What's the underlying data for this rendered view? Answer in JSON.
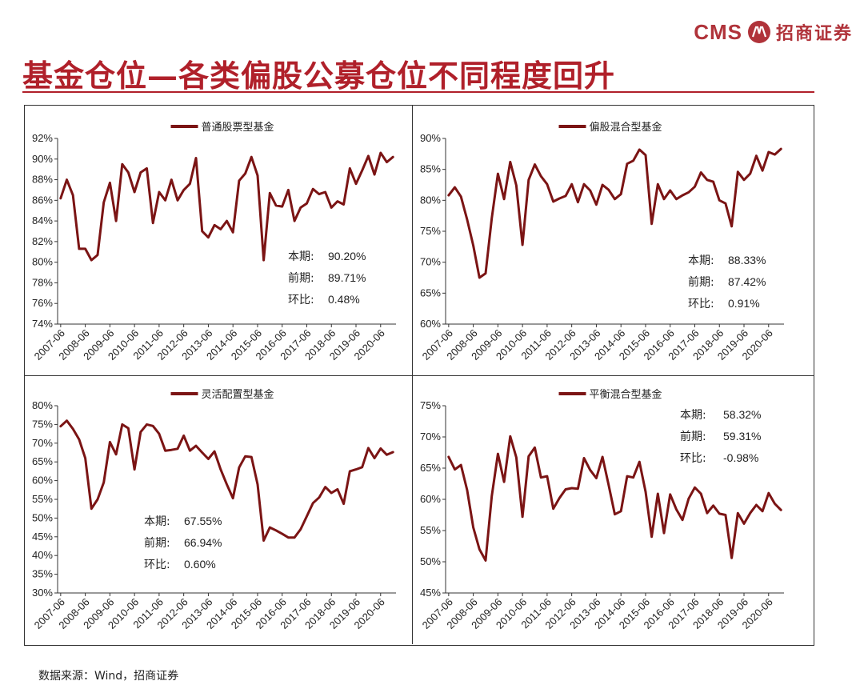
{
  "header": {
    "logo_cms": "CMS",
    "logo_cn": "招商证券",
    "title": "基金仓位—各类偏股公募仓位不同程度回升"
  },
  "source": "数据来源：Wind，招商证券",
  "colors": {
    "line": "#7b1414",
    "title": "#b0202a",
    "logo": "#b0333a"
  },
  "x_ticks": [
    "2007-06",
    "2008-06",
    "2009-06",
    "2010-06",
    "2011-06",
    "2012-06",
    "2013-06",
    "2014-06",
    "2015-06",
    "2016-06",
    "2017-06",
    "2018-06",
    "2019-06",
    "2020-06"
  ],
  "chart_data": [
    {
      "type": "line",
      "title": "普通股票型基金",
      "legend": "普通股票型基金",
      "ylim": [
        74,
        92
      ],
      "y_ticks": [
        "74%",
        "76%",
        "78%",
        "80%",
        "82%",
        "84%",
        "86%",
        "88%",
        "90%",
        "92%"
      ],
      "y_step": 2,
      "x_start": "2007-06",
      "x_freq": "quarterly",
      "values": [
        86.2,
        88.0,
        86.5,
        81.3,
        81.3,
        80.2,
        80.7,
        85.8,
        87.7,
        84.0,
        89.5,
        88.7,
        86.8,
        88.7,
        89.1,
        83.8,
        86.8,
        86.0,
        88.0,
        86.0,
        87.0,
        87.6,
        90.1,
        83.0,
        82.4,
        83.6,
        83.2,
        84.0,
        82.9,
        87.9,
        88.6,
        90.2,
        88.4,
        80.2,
        86.7,
        85.5,
        85.4,
        87.0,
        84.0,
        85.3,
        85.7,
        87.1,
        86.6,
        86.8,
        85.3,
        85.9,
        85.6,
        89.1,
        87.6,
        88.9,
        90.3,
        88.5,
        90.6,
        89.7,
        90.2
      ],
      "annotations": {
        "current_label": "本期:",
        "current": "90.20%",
        "previous_label": "前期:",
        "previous": "89.71%",
        "change_label": "环比:",
        "change": "0.48%"
      }
    },
    {
      "type": "line",
      "title": "偏股混合型基金",
      "legend": "偏股混合型基金",
      "ylim": [
        60,
        90
      ],
      "y_ticks": [
        "60%",
        "65%",
        "70%",
        "75%",
        "80%",
        "85%",
        "90%"
      ],
      "y_step": 5,
      "x_start": "2007-06",
      "x_freq": "quarterly",
      "values": [
        80.8,
        82.1,
        80.6,
        76.9,
        72.7,
        67.5,
        68.2,
        77.1,
        84.3,
        80.2,
        86.2,
        82.4,
        72.8,
        83.3,
        85.8,
        83.9,
        82.6,
        79.8,
        80.3,
        80.7,
        82.6,
        79.7,
        82.6,
        81.6,
        79.3,
        82.5,
        81.7,
        80.2,
        81.0,
        85.9,
        86.4,
        88.2,
        87.3,
        76.2,
        82.6,
        80.2,
        81.6,
        80.2,
        80.8,
        81.3,
        82.2,
        84.5,
        83.3,
        83.0,
        80.0,
        79.5,
        75.8,
        84.6,
        83.3,
        84.3,
        87.2,
        84.8,
        87.8,
        87.4,
        88.3
      ],
      "annotations": {
        "current_label": "本期:",
        "current": "88.33%",
        "previous_label": "前期:",
        "previous": "87.42%",
        "change_label": "环比:",
        "change": "0.91%"
      }
    },
    {
      "type": "line",
      "title": "灵活配置型基金",
      "legend": "灵活配置型基金",
      "ylim": [
        30,
        80
      ],
      "y_ticks": [
        "30%",
        "35%",
        "40%",
        "45%",
        "50%",
        "55%",
        "60%",
        "65%",
        "70%",
        "75%",
        "80%"
      ],
      "y_step": 5,
      "x_start": "2007-06",
      "x_freq": "quarterly",
      "values": [
        74.5,
        76.0,
        73.8,
        71.0,
        66.0,
        52.5,
        55.0,
        59.5,
        70.3,
        67.0,
        75.0,
        74.0,
        63.0,
        73.0,
        75.0,
        74.6,
        72.5,
        68.0,
        68.2,
        68.5,
        72.0,
        68.0,
        69.3,
        67.5,
        65.8,
        67.8,
        63.0,
        59.0,
        55.3,
        63.5,
        66.5,
        66.3,
        59.0,
        44.0,
        47.5,
        46.7,
        45.8,
        44.8,
        44.8,
        47.0,
        50.5,
        54.0,
        55.5,
        58.3,
        56.7,
        57.7,
        53.8,
        62.5,
        63.0,
        63.6,
        68.7,
        66.0,
        68.6,
        66.9,
        67.6
      ],
      "annotations": {
        "current_label": "本期:",
        "current": "67.55%",
        "previous_label": "前期:",
        "previous": "66.94%",
        "change_label": "环比:",
        "change": "0.60%"
      }
    },
    {
      "type": "line",
      "title": "平衡混合型基金",
      "legend": "平衡混合型基金",
      "ylim": [
        45,
        75
      ],
      "y_ticks": [
        "45%",
        "50%",
        "55%",
        "60%",
        "65%",
        "70%",
        "75%"
      ],
      "y_step": 5,
      "x_start": "2007-06",
      "x_freq": "quarterly",
      "values": [
        66.8,
        64.8,
        65.5,
        61.5,
        55.5,
        52.0,
        50.2,
        60.5,
        67.3,
        62.8,
        70.1,
        66.7,
        57.2,
        66.9,
        68.3,
        63.5,
        63.7,
        58.5,
        60.2,
        61.6,
        61.8,
        61.7,
        66.6,
        64.7,
        63.4,
        66.8,
        62.3,
        57.6,
        58.1,
        63.7,
        63.5,
        66.0,
        61.2,
        54.0,
        60.9,
        54.6,
        60.8,
        58.4,
        56.7,
        60.1,
        61.9,
        60.9,
        57.8,
        59.0,
        57.7,
        57.5,
        50.6,
        57.8,
        56.1,
        57.8,
        59.1,
        58.1,
        61.0,
        59.3,
        58.3
      ],
      "annotations": {
        "current_label": "本期:",
        "current": "58.32%",
        "previous_label": "前期:",
        "previous": "59.31%",
        "change_label": "环比:",
        "change": "-0.98%"
      }
    }
  ]
}
